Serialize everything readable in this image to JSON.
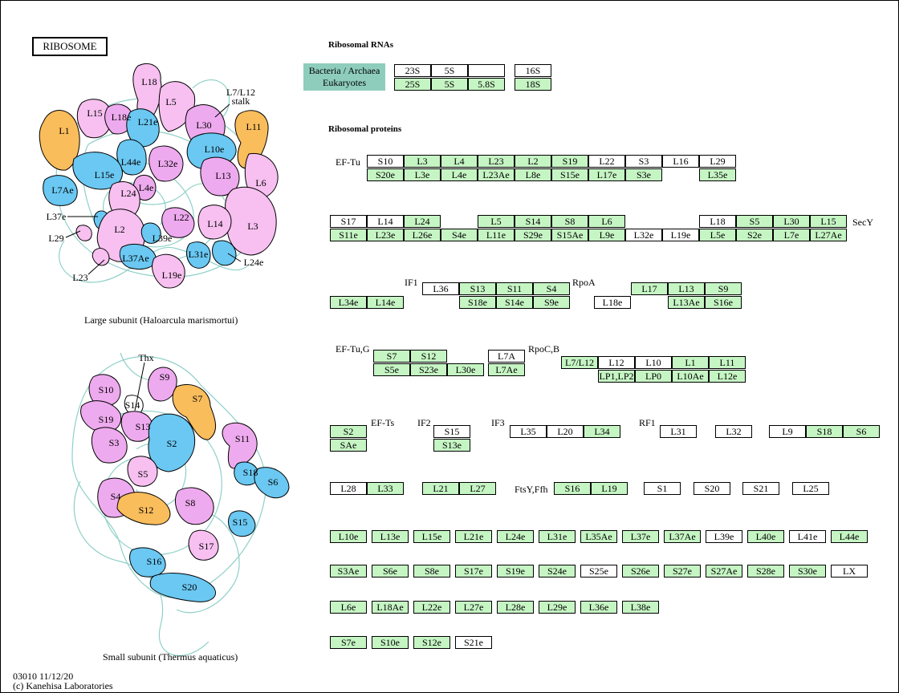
{
  "title": "RIBOSOME",
  "headings": {
    "rrna": "Ribosomal RNAs",
    "proteins": "Ribosomal proteins"
  },
  "legend": {
    "bacteria": "Bacteria / Archaea",
    "eukaryotes": "Eukaryotes"
  },
  "captions": {
    "large": "Large subunit (Haloarcula marismortui)",
    "small": "Small subunit (Thermus aquaticus)"
  },
  "footer": {
    "id": "03010 11/12/20",
    "copyright": "(c) Kanehisa Laboratories"
  },
  "colors": {
    "pink": "#f7c0f0",
    "violet": "#eeaaee",
    "blue": "#6ac8f2",
    "orange": "#f9bd5c",
    "green_box": "#c6f5c4",
    "legend_teal": "#8ecdbc",
    "rna_line": "#8fd0c8"
  },
  "factors": [
    "EF-Tu",
    "SecY",
    "IF1",
    "RpoA",
    "EF-Tu,G",
    "RpoC,B",
    "EF-Ts",
    "IF2",
    "IF3",
    "RF1",
    "FtsY,Ffh"
  ],
  "large_subunit_labels": [
    "L18",
    "L5",
    "L7/L12",
    "stalk",
    "L15",
    "L18e",
    "L21e",
    "L1",
    "L30",
    "L11",
    "L44e",
    "L32e",
    "L10e",
    "L15e",
    "L24",
    "L4e",
    "L13",
    "L6",
    "L7Ae",
    "L37e",
    "L2",
    "L22",
    "L14",
    "L3",
    "L29",
    "L39e",
    "L37Ae",
    "L31e",
    "L24e",
    "L23",
    "L19e"
  ],
  "small_subunit_labels": [
    "Thx",
    "S9",
    "S10",
    "S14",
    "S7",
    "S19",
    "S13",
    "S3",
    "S2",
    "S11",
    "S5",
    "S18",
    "S6",
    "S4",
    "S12",
    "S8",
    "S15",
    "S17",
    "S16",
    "S20"
  ],
  "rrna_boxes": [
    {
      "t": "23S",
      "c": "w"
    },
    {
      "t": "5S",
      "c": "w"
    },
    {
      "t": "",
      "c": "w"
    },
    {
      "t": "16S",
      "c": "w"
    },
    {
      "t": "25S",
      "c": "g"
    },
    {
      "t": "5S",
      "c": "g"
    },
    {
      "t": "5.8S",
      "c": "g"
    },
    {
      "t": "18S",
      "c": "g"
    }
  ],
  "protein_boxes": [
    {
      "t": "S10",
      "c": "w"
    },
    {
      "t": "L3",
      "c": "g"
    },
    {
      "t": "L4",
      "c": "g"
    },
    {
      "t": "L23",
      "c": "g"
    },
    {
      "t": "L2",
      "c": "g"
    },
    {
      "t": "S19",
      "c": "g"
    },
    {
      "t": "L22",
      "c": "w"
    },
    {
      "t": "S3",
      "c": "w"
    },
    {
      "t": "L16",
      "c": "w"
    },
    {
      "t": "L29",
      "c": "w"
    },
    {
      "t": "S20e",
      "c": "g"
    },
    {
      "t": "L3e",
      "c": "g"
    },
    {
      "t": "L4e",
      "c": "g"
    },
    {
      "t": "L23Ae",
      "c": "g"
    },
    {
      "t": "L8e",
      "c": "g"
    },
    {
      "t": "S15e",
      "c": "g"
    },
    {
      "t": "L17e",
      "c": "g"
    },
    {
      "t": "S3e",
      "c": "g"
    },
    {
      "t": "L35e",
      "c": "g"
    },
    {
      "t": "S17",
      "c": "w"
    },
    {
      "t": "L14",
      "c": "w"
    },
    {
      "t": "L24",
      "c": "g"
    },
    {
      "t": "L5",
      "c": "g"
    },
    {
      "t": "S14",
      "c": "g"
    },
    {
      "t": "S8",
      "c": "g"
    },
    {
      "t": "L6",
      "c": "g"
    },
    {
      "t": "L18",
      "c": "w"
    },
    {
      "t": "S5",
      "c": "g"
    },
    {
      "t": "L30",
      "c": "g"
    },
    {
      "t": "L15",
      "c": "g"
    },
    {
      "t": "S11e",
      "c": "g"
    },
    {
      "t": "L23e",
      "c": "g"
    },
    {
      "t": "L26e",
      "c": "g"
    },
    {
      "t": "S4e",
      "c": "g"
    },
    {
      "t": "L11e",
      "c": "g"
    },
    {
      "t": "S29e",
      "c": "g"
    },
    {
      "t": "S15Ae",
      "c": "g"
    },
    {
      "t": "L9e",
      "c": "g"
    },
    {
      "t": "L32e",
      "c": "w"
    },
    {
      "t": "L19e",
      "c": "w"
    },
    {
      "t": "L5e",
      "c": "g"
    },
    {
      "t": "S2e",
      "c": "g"
    },
    {
      "t": "L7e",
      "c": "g"
    },
    {
      "t": "L27Ae",
      "c": "g"
    },
    {
      "t": "L36",
      "c": "w"
    },
    {
      "t": "S13",
      "c": "g"
    },
    {
      "t": "S11",
      "c": "g"
    },
    {
      "t": "S4",
      "c": "g"
    },
    {
      "t": "L17",
      "c": "g"
    },
    {
      "t": "L13",
      "c": "g"
    },
    {
      "t": "S9",
      "c": "g"
    },
    {
      "t": "L34e",
      "c": "g"
    },
    {
      "t": "L14e",
      "c": "g"
    },
    {
      "t": "S18e",
      "c": "g"
    },
    {
      "t": "S14e",
      "c": "g"
    },
    {
      "t": "S9e",
      "c": "g"
    },
    {
      "t": "L18e",
      "c": "w"
    },
    {
      "t": "L13Ae",
      "c": "g"
    },
    {
      "t": "S16e",
      "c": "g"
    },
    {
      "t": "S7",
      "c": "g"
    },
    {
      "t": "S12",
      "c": "g"
    },
    {
      "t": "L7A",
      "c": "w"
    },
    {
      "t": "L7/L12",
      "c": "g"
    },
    {
      "t": "L12",
      "c": "w"
    },
    {
      "t": "L10",
      "c": "w"
    },
    {
      "t": "L1",
      "c": "g"
    },
    {
      "t": "L11",
      "c": "g"
    },
    {
      "t": "S5e",
      "c": "g"
    },
    {
      "t": "S23e",
      "c": "g"
    },
    {
      "t": "L30e",
      "c": "g"
    },
    {
      "t": "L7Ae",
      "c": "g"
    },
    {
      "t": "LP1,LP2",
      "c": "g"
    },
    {
      "t": "LP0",
      "c": "g"
    },
    {
      "t": "L10Ae",
      "c": "g"
    },
    {
      "t": "L12e",
      "c": "g"
    },
    {
      "t": "S2",
      "c": "g"
    },
    {
      "t": "S15",
      "c": "w"
    },
    {
      "t": "L35",
      "c": "w"
    },
    {
      "t": "L20",
      "c": "w"
    },
    {
      "t": "L34",
      "c": "g"
    },
    {
      "t": "L31",
      "c": "w"
    },
    {
      "t": "L32",
      "c": "w"
    },
    {
      "t": "L9",
      "c": "w"
    },
    {
      "t": "S18",
      "c": "g"
    },
    {
      "t": "S6",
      "c": "g"
    },
    {
      "t": "SAe",
      "c": "g"
    },
    {
      "t": "S13e",
      "c": "g"
    },
    {
      "t": "L28",
      "c": "w"
    },
    {
      "t": "L33",
      "c": "g"
    },
    {
      "t": "L21",
      "c": "g"
    },
    {
      "t": "L27",
      "c": "g"
    },
    {
      "t": "S16",
      "c": "g"
    },
    {
      "t": "L19",
      "c": "g"
    },
    {
      "t": "S1",
      "c": "w"
    },
    {
      "t": "S20",
      "c": "w"
    },
    {
      "t": "S21",
      "c": "w"
    },
    {
      "t": "L25",
      "c": "w"
    },
    {
      "t": "L10e",
      "c": "g"
    },
    {
      "t": "L13e",
      "c": "g"
    },
    {
      "t": "L15e",
      "c": "g"
    },
    {
      "t": "L21e",
      "c": "g"
    },
    {
      "t": "L24e",
      "c": "g"
    },
    {
      "t": "L31e",
      "c": "g"
    },
    {
      "t": "L35Ae",
      "c": "g"
    },
    {
      "t": "L37e",
      "c": "g"
    },
    {
      "t": "L37Ae",
      "c": "g"
    },
    {
      "t": "L39e",
      "c": "w"
    },
    {
      "t": "L40e",
      "c": "g"
    },
    {
      "t": "L41e",
      "c": "w"
    },
    {
      "t": "L44e",
      "c": "g"
    },
    {
      "t": "S3Ae",
      "c": "g"
    },
    {
      "t": "S6e",
      "c": "g"
    },
    {
      "t": "S8e",
      "c": "g"
    },
    {
      "t": "S17e",
      "c": "g"
    },
    {
      "t": "S19e",
      "c": "g"
    },
    {
      "t": "S24e",
      "c": "g"
    },
    {
      "t": "S25e",
      "c": "w"
    },
    {
      "t": "S26e",
      "c": "g"
    },
    {
      "t": "S27e",
      "c": "g"
    },
    {
      "t": "S27Ae",
      "c": "g"
    },
    {
      "t": "S28e",
      "c": "g"
    },
    {
      "t": "S30e",
      "c": "g"
    },
    {
      "t": "LX",
      "c": "w"
    },
    {
      "t": "L6e",
      "c": "g"
    },
    {
      "t": "L18Ae",
      "c": "g"
    },
    {
      "t": "L22e",
      "c": "g"
    },
    {
      "t": "L27e",
      "c": "g"
    },
    {
      "t": "L28e",
      "c": "g"
    },
    {
      "t": "L29e",
      "c": "g"
    },
    {
      "t": "L36e",
      "c": "g"
    },
    {
      "t": "L38e",
      "c": "g"
    },
    {
      "t": "S7e",
      "c": "g"
    },
    {
      "t": "S10e",
      "c": "g"
    },
    {
      "t": "S12e",
      "c": "g"
    },
    {
      "t": "S21e",
      "c": "w"
    }
  ]
}
